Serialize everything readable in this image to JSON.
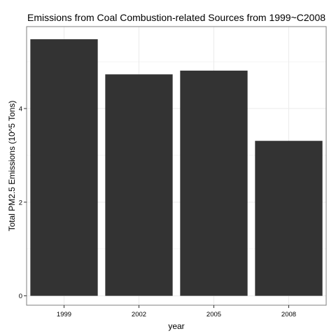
{
  "chart_data": {
    "type": "bar",
    "title": "Emissions from Coal Combustion-related Sources from 1999~C2008",
    "xlabel": "year",
    "ylabel": "Total PM2.5 Emissions (10^5 Tons)",
    "categories": [
      "1999",
      "2002",
      "2005",
      "2008"
    ],
    "values": [
      5.48,
      4.73,
      4.81,
      3.31
    ],
    "ylim": [
      -0.2,
      5.75
    ],
    "yticks": [
      0,
      2,
      4
    ],
    "grid": true,
    "bar_color": "#333333",
    "grid_color": "#ebebeb",
    "panel_border_color": "#7f7f7f"
  }
}
